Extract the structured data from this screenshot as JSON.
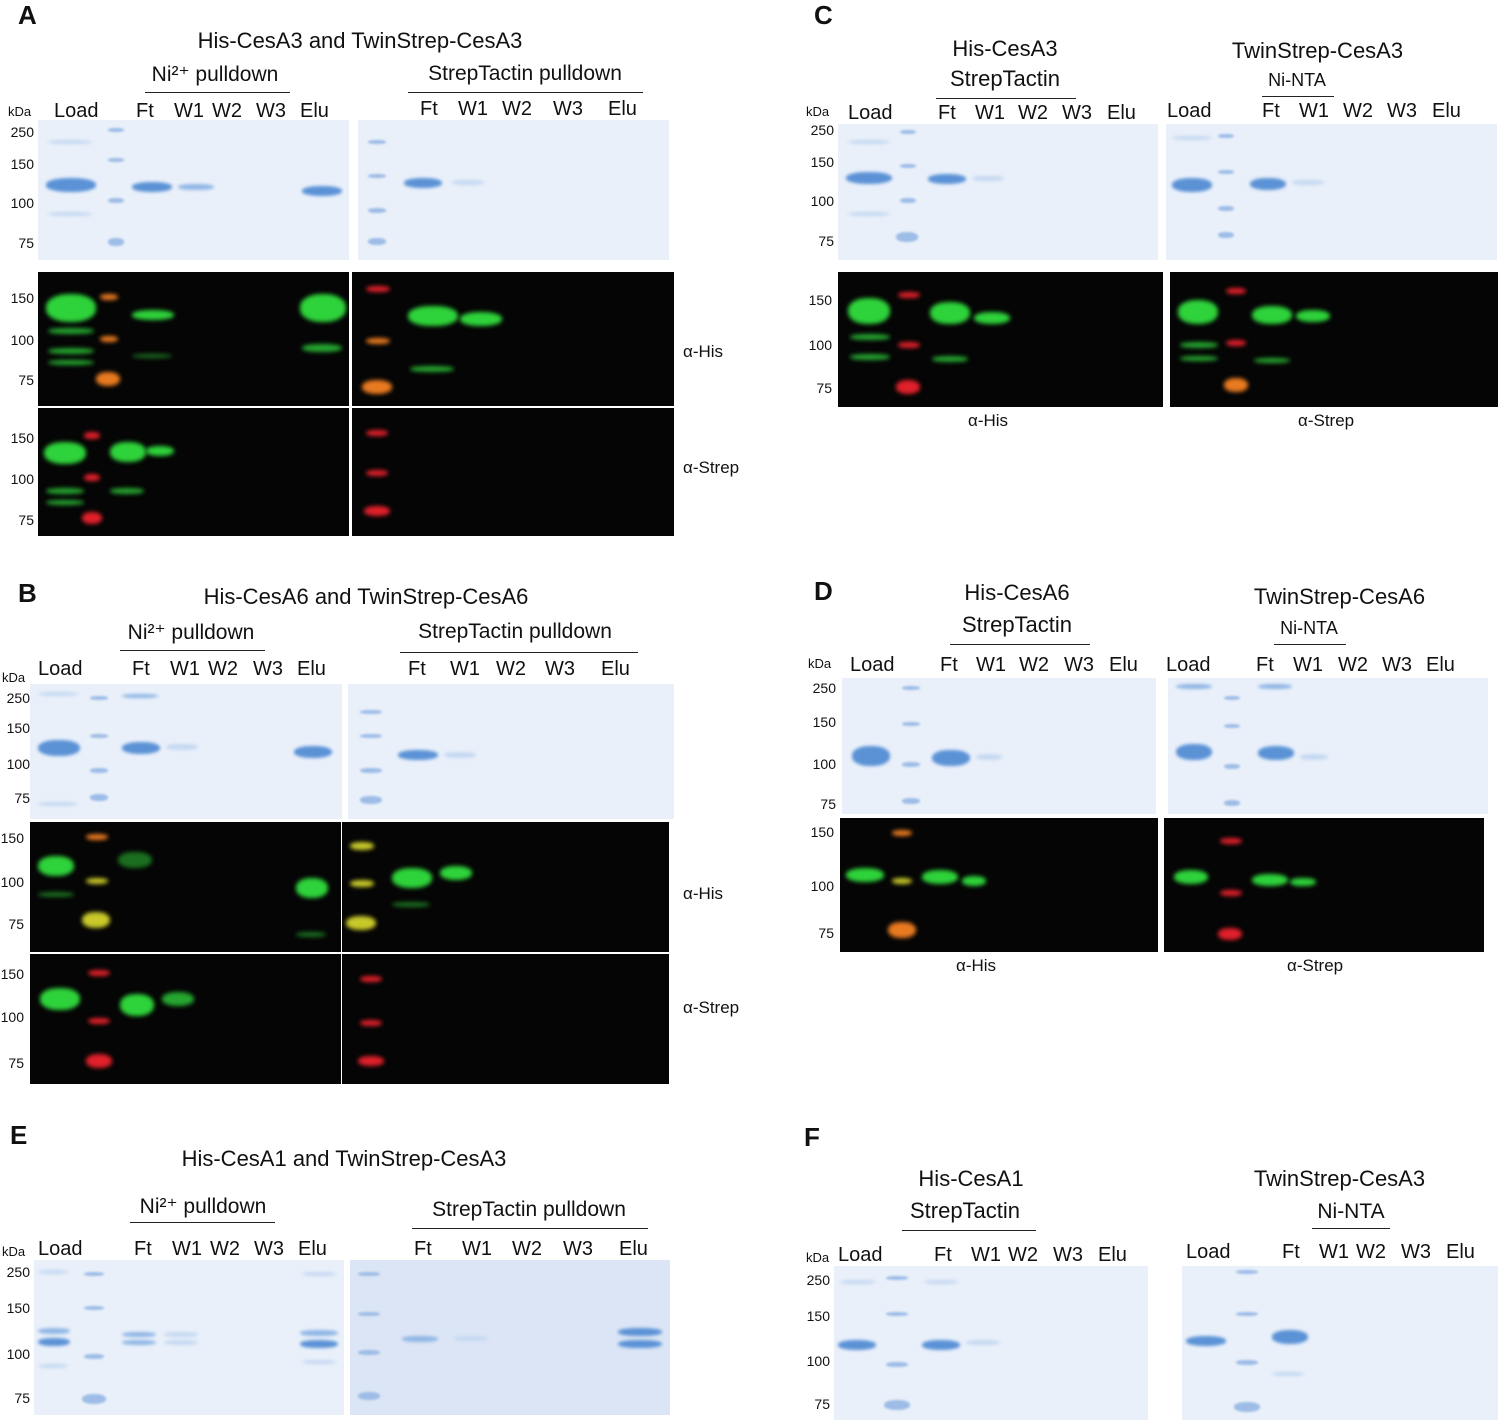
{
  "panels": {
    "a": {
      "letter": "A",
      "title": "His-CesA3 and TwinStrep-CesA3",
      "left_sub": "Ni²⁺ pulldown",
      "right_sub": "StrepTactin pulldown",
      "lanes_left": [
        "Load",
        "Ft",
        "W1",
        "W2",
        "W3",
        "Elu"
      ],
      "lanes_right": [
        "Ft",
        "W1",
        "W2",
        "W3",
        "Elu"
      ],
      "kda": "kDa",
      "gel_markers": [
        "250",
        "150",
        "100",
        "75"
      ],
      "blot_markers": [
        "150",
        "100",
        "75"
      ],
      "blot2_markers": [
        "150",
        "100",
        "75"
      ],
      "ab1": "α-His",
      "ab2": "α-Strep"
    },
    "b": {
      "letter": "B",
      "title": "His-CesA6 and TwinStrep-CesA6",
      "left_sub": "Ni²⁺ pulldown",
      "right_sub": "StrepTactin pulldown",
      "lanes_left": [
        "Load",
        "Ft",
        "W1",
        "W2",
        "W3",
        "Elu"
      ],
      "lanes_right": [
        "Ft",
        "W1",
        "W2",
        "W3",
        "Elu"
      ],
      "kda": "kDa",
      "gel_markers": [
        "250",
        "150",
        "100",
        "75"
      ],
      "blot_markers": [
        "150",
        "100",
        "75"
      ],
      "blot2_markers": [
        "150",
        "100",
        "75"
      ],
      "ab1": "α-His",
      "ab2": "α-Strep"
    },
    "c": {
      "letter": "C",
      "left_title": [
        "His-CesA3",
        "StrepTactin"
      ],
      "right_title": "TwinStrep-CesA3",
      "right_sub": "Ni-NTA",
      "lanes_left": [
        "Load",
        "Ft",
        "W1",
        "W2",
        "W3",
        "Elu"
      ],
      "lanes_right": [
        "Load",
        "Ft",
        "W1",
        "W2",
        "W3",
        "Elu"
      ],
      "kda": "kDa",
      "gel_markers": [
        "250",
        "150",
        "100",
        "75"
      ],
      "blot_markers": [
        "150",
        "100",
        "75"
      ],
      "ab_left": "α-His",
      "ab_right": "α-Strep"
    },
    "d": {
      "letter": "D",
      "left_title": [
        "His-CesA6",
        "StrepTactin"
      ],
      "right_title": "TwinStrep-CesA6",
      "right_sub": "Ni-NTA",
      "lanes_left": [
        "Load",
        "Ft",
        "W1",
        "W2",
        "W3",
        "Elu"
      ],
      "lanes_right": [
        "Load",
        "Ft",
        "W1",
        "W2",
        "W3",
        "Elu"
      ],
      "kda": "kDa",
      "gel_markers": [
        "250",
        "150",
        "100",
        "75"
      ],
      "blot_markers": [
        "150",
        "100",
        "75"
      ],
      "ab_left": "α-His",
      "ab_right": "α-Strep"
    },
    "e": {
      "letter": "E",
      "title": "His-CesA1 and TwinStrep-CesA3",
      "left_sub": "Ni²⁺ pulldown",
      "right_sub": "StrepTactin pulldown",
      "lanes_left": [
        "Load",
        "Ft",
        "W1",
        "W2",
        "W3",
        "Elu"
      ],
      "lanes_right": [
        "Ft",
        "W1",
        "W2",
        "W3",
        "Elu"
      ],
      "kda": "kDa",
      "gel_markers": [
        "250",
        "150",
        "100",
        "75"
      ]
    },
    "f": {
      "letter": "F",
      "left_title": [
        "His-CesA1",
        "StrepTactin"
      ],
      "right_title": "TwinStrep-CesA3",
      "right_sub": "Ni-NTA",
      "lanes_left": [
        "Load",
        "Ft",
        "W1",
        "W2",
        "W3",
        "Elu"
      ],
      "lanes_right": [
        "Load",
        "Ft",
        "W1",
        "W2",
        "W3",
        "Elu"
      ],
      "kda": "kDa",
      "gel_markers": [
        "250",
        "150",
        "100",
        "75"
      ]
    }
  }
}
